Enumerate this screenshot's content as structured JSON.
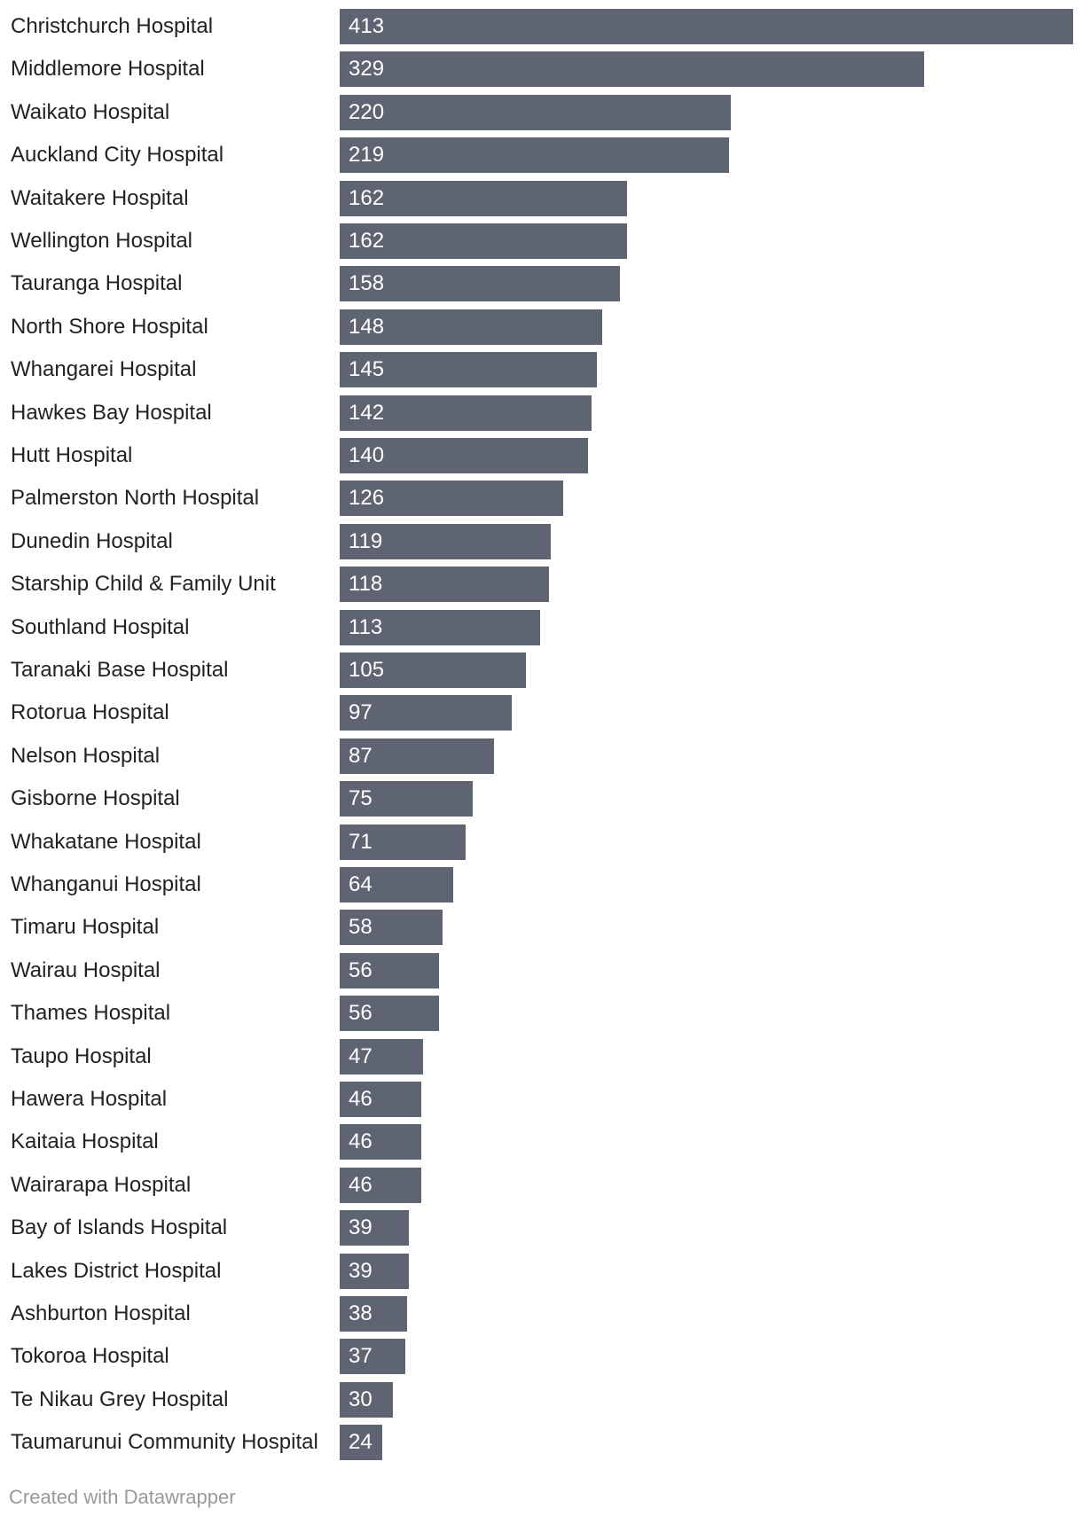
{
  "chart_data": {
    "type": "bar",
    "orientation": "horizontal",
    "bar_color": "#5e6472",
    "categories": [
      "Christchurch Hospital",
      "Middlemore Hospital",
      "Waikato Hospital",
      "Auckland City Hospital",
      "Waitakere Hospital",
      "Wellington Hospital",
      "Tauranga Hospital",
      "North Shore Hospital",
      "Whangarei Hospital",
      "Hawkes Bay Hospital",
      "Hutt Hospital",
      "Palmerston North Hospital",
      "Dunedin Hospital",
      "Starship Child & Family Unit",
      "Southland Hospital",
      "Taranaki Base Hospital",
      "Rotorua Hospital",
      "Nelson Hospital",
      "Gisborne Hospital",
      "Whakatane Hospital",
      "Whanganui Hospital",
      "Timaru Hospital",
      "Wairau Hospital",
      "Thames Hospital",
      "Taupo Hospital",
      "Hawera Hospital",
      "Kaitaia Hospital",
      "Wairarapa Hospital",
      "Bay of Islands Hospital",
      "Lakes District Hospital",
      "Ashburton Hospital",
      "Tokoroa Hospital",
      "Te Nikau Grey Hospital",
      "Taumarunui Community Hospital"
    ],
    "values": [
      413,
      329,
      220,
      219,
      162,
      162,
      158,
      148,
      145,
      142,
      140,
      126,
      119,
      118,
      113,
      105,
      97,
      87,
      75,
      71,
      64,
      58,
      56,
      56,
      47,
      46,
      46,
      46,
      39,
      39,
      38,
      37,
      30,
      24
    ],
    "xlim": [
      0,
      413
    ],
    "data_labels": "inside-left",
    "grid": false
  },
  "footer": {
    "credit": "Created with Datawrapper"
  }
}
